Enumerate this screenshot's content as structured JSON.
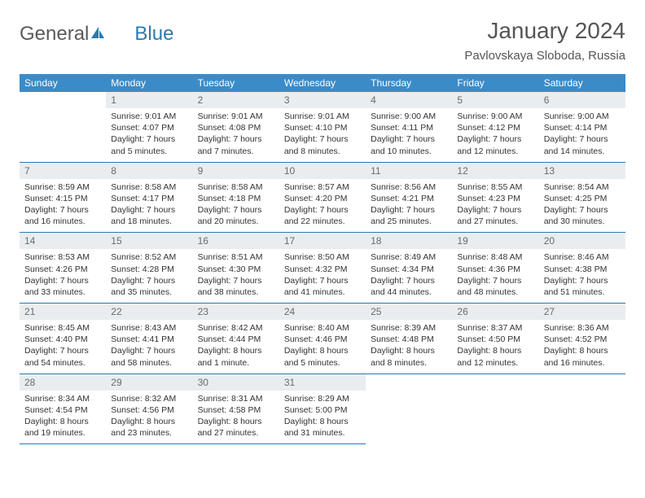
{
  "logo": {
    "text1": "General",
    "text2": "Blue"
  },
  "title": "January 2024",
  "location": "Pavlovskaya Sloboda, Russia",
  "colors": {
    "header_bg": "#3b8bc8",
    "header_text": "#ffffff",
    "daynum_bg": "#e9edef",
    "daynum_text": "#6a6a6a",
    "border": "#2a7ab0",
    "logo_gray": "#5a5a5a",
    "logo_blue": "#2a7ab0"
  },
  "weekdays": [
    "Sunday",
    "Monday",
    "Tuesday",
    "Wednesday",
    "Thursday",
    "Friday",
    "Saturday"
  ],
  "weeks": [
    [
      null,
      {
        "n": "1",
        "sr": "9:01 AM",
        "ss": "4:07 PM",
        "dl": "7 hours and 5 minutes."
      },
      {
        "n": "2",
        "sr": "9:01 AM",
        "ss": "4:08 PM",
        "dl": "7 hours and 7 minutes."
      },
      {
        "n": "3",
        "sr": "9:01 AM",
        "ss": "4:10 PM",
        "dl": "7 hours and 8 minutes."
      },
      {
        "n": "4",
        "sr": "9:00 AM",
        "ss": "4:11 PM",
        "dl": "7 hours and 10 minutes."
      },
      {
        "n": "5",
        "sr": "9:00 AM",
        "ss": "4:12 PM",
        "dl": "7 hours and 12 minutes."
      },
      {
        "n": "6",
        "sr": "9:00 AM",
        "ss": "4:14 PM",
        "dl": "7 hours and 14 minutes."
      }
    ],
    [
      {
        "n": "7",
        "sr": "8:59 AM",
        "ss": "4:15 PM",
        "dl": "7 hours and 16 minutes."
      },
      {
        "n": "8",
        "sr": "8:58 AM",
        "ss": "4:17 PM",
        "dl": "7 hours and 18 minutes."
      },
      {
        "n": "9",
        "sr": "8:58 AM",
        "ss": "4:18 PM",
        "dl": "7 hours and 20 minutes."
      },
      {
        "n": "10",
        "sr": "8:57 AM",
        "ss": "4:20 PM",
        "dl": "7 hours and 22 minutes."
      },
      {
        "n": "11",
        "sr": "8:56 AM",
        "ss": "4:21 PM",
        "dl": "7 hours and 25 minutes."
      },
      {
        "n": "12",
        "sr": "8:55 AM",
        "ss": "4:23 PM",
        "dl": "7 hours and 27 minutes."
      },
      {
        "n": "13",
        "sr": "8:54 AM",
        "ss": "4:25 PM",
        "dl": "7 hours and 30 minutes."
      }
    ],
    [
      {
        "n": "14",
        "sr": "8:53 AM",
        "ss": "4:26 PM",
        "dl": "7 hours and 33 minutes."
      },
      {
        "n": "15",
        "sr": "8:52 AM",
        "ss": "4:28 PM",
        "dl": "7 hours and 35 minutes."
      },
      {
        "n": "16",
        "sr": "8:51 AM",
        "ss": "4:30 PM",
        "dl": "7 hours and 38 minutes."
      },
      {
        "n": "17",
        "sr": "8:50 AM",
        "ss": "4:32 PM",
        "dl": "7 hours and 41 minutes."
      },
      {
        "n": "18",
        "sr": "8:49 AM",
        "ss": "4:34 PM",
        "dl": "7 hours and 44 minutes."
      },
      {
        "n": "19",
        "sr": "8:48 AM",
        "ss": "4:36 PM",
        "dl": "7 hours and 48 minutes."
      },
      {
        "n": "20",
        "sr": "8:46 AM",
        "ss": "4:38 PM",
        "dl": "7 hours and 51 minutes."
      }
    ],
    [
      {
        "n": "21",
        "sr": "8:45 AM",
        "ss": "4:40 PM",
        "dl": "7 hours and 54 minutes."
      },
      {
        "n": "22",
        "sr": "8:43 AM",
        "ss": "4:41 PM",
        "dl": "7 hours and 58 minutes."
      },
      {
        "n": "23",
        "sr": "8:42 AM",
        "ss": "4:44 PM",
        "dl": "8 hours and 1 minute."
      },
      {
        "n": "24",
        "sr": "8:40 AM",
        "ss": "4:46 PM",
        "dl": "8 hours and 5 minutes."
      },
      {
        "n": "25",
        "sr": "8:39 AM",
        "ss": "4:48 PM",
        "dl": "8 hours and 8 minutes."
      },
      {
        "n": "26",
        "sr": "8:37 AM",
        "ss": "4:50 PM",
        "dl": "8 hours and 12 minutes."
      },
      {
        "n": "27",
        "sr": "8:36 AM",
        "ss": "4:52 PM",
        "dl": "8 hours and 16 minutes."
      }
    ],
    [
      {
        "n": "28",
        "sr": "8:34 AM",
        "ss": "4:54 PM",
        "dl": "8 hours and 19 minutes."
      },
      {
        "n": "29",
        "sr": "8:32 AM",
        "ss": "4:56 PM",
        "dl": "8 hours and 23 minutes."
      },
      {
        "n": "30",
        "sr": "8:31 AM",
        "ss": "4:58 PM",
        "dl": "8 hours and 27 minutes."
      },
      {
        "n": "31",
        "sr": "8:29 AM",
        "ss": "5:00 PM",
        "dl": "8 hours and 31 minutes."
      },
      null,
      null,
      null
    ]
  ],
  "labels": {
    "sunrise": "Sunrise:",
    "sunset": "Sunset:",
    "daylight": "Daylight:"
  }
}
